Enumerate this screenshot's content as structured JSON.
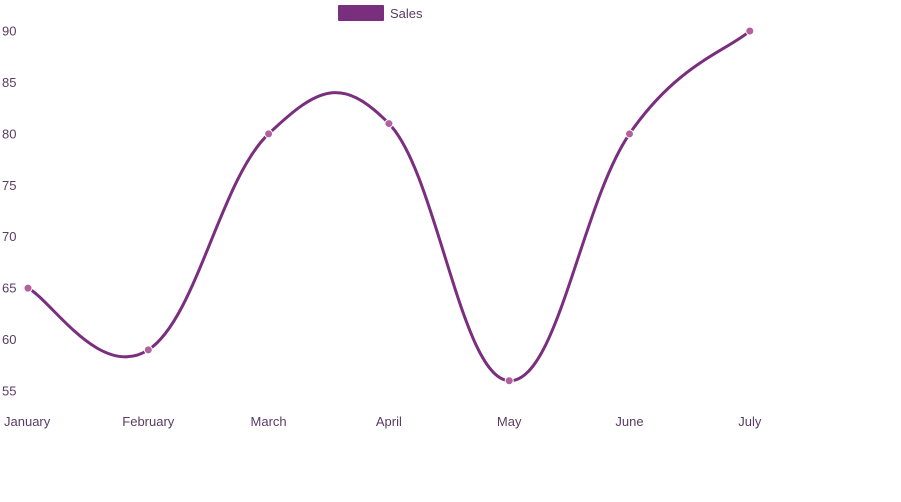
{
  "chart_data": {
    "type": "line",
    "categories": [
      "January",
      "February",
      "March",
      "April",
      "May",
      "June",
      "July"
    ],
    "series": [
      {
        "name": "Sales",
        "values": [
          65,
          59,
          80,
          81,
          56,
          80,
          90
        ]
      }
    ],
    "title": "",
    "xlabel": "",
    "ylabel": "",
    "ylim": [
      55,
      90
    ],
    "yticks": [
      90,
      85,
      80,
      75,
      70,
      65,
      60,
      55
    ],
    "grid": false,
    "legend_position": "top-center",
    "line_style": "smooth",
    "colors": {
      "line": "#7a2e7e",
      "point": "#b3609f",
      "legend_box": "#7a2e7e"
    }
  }
}
